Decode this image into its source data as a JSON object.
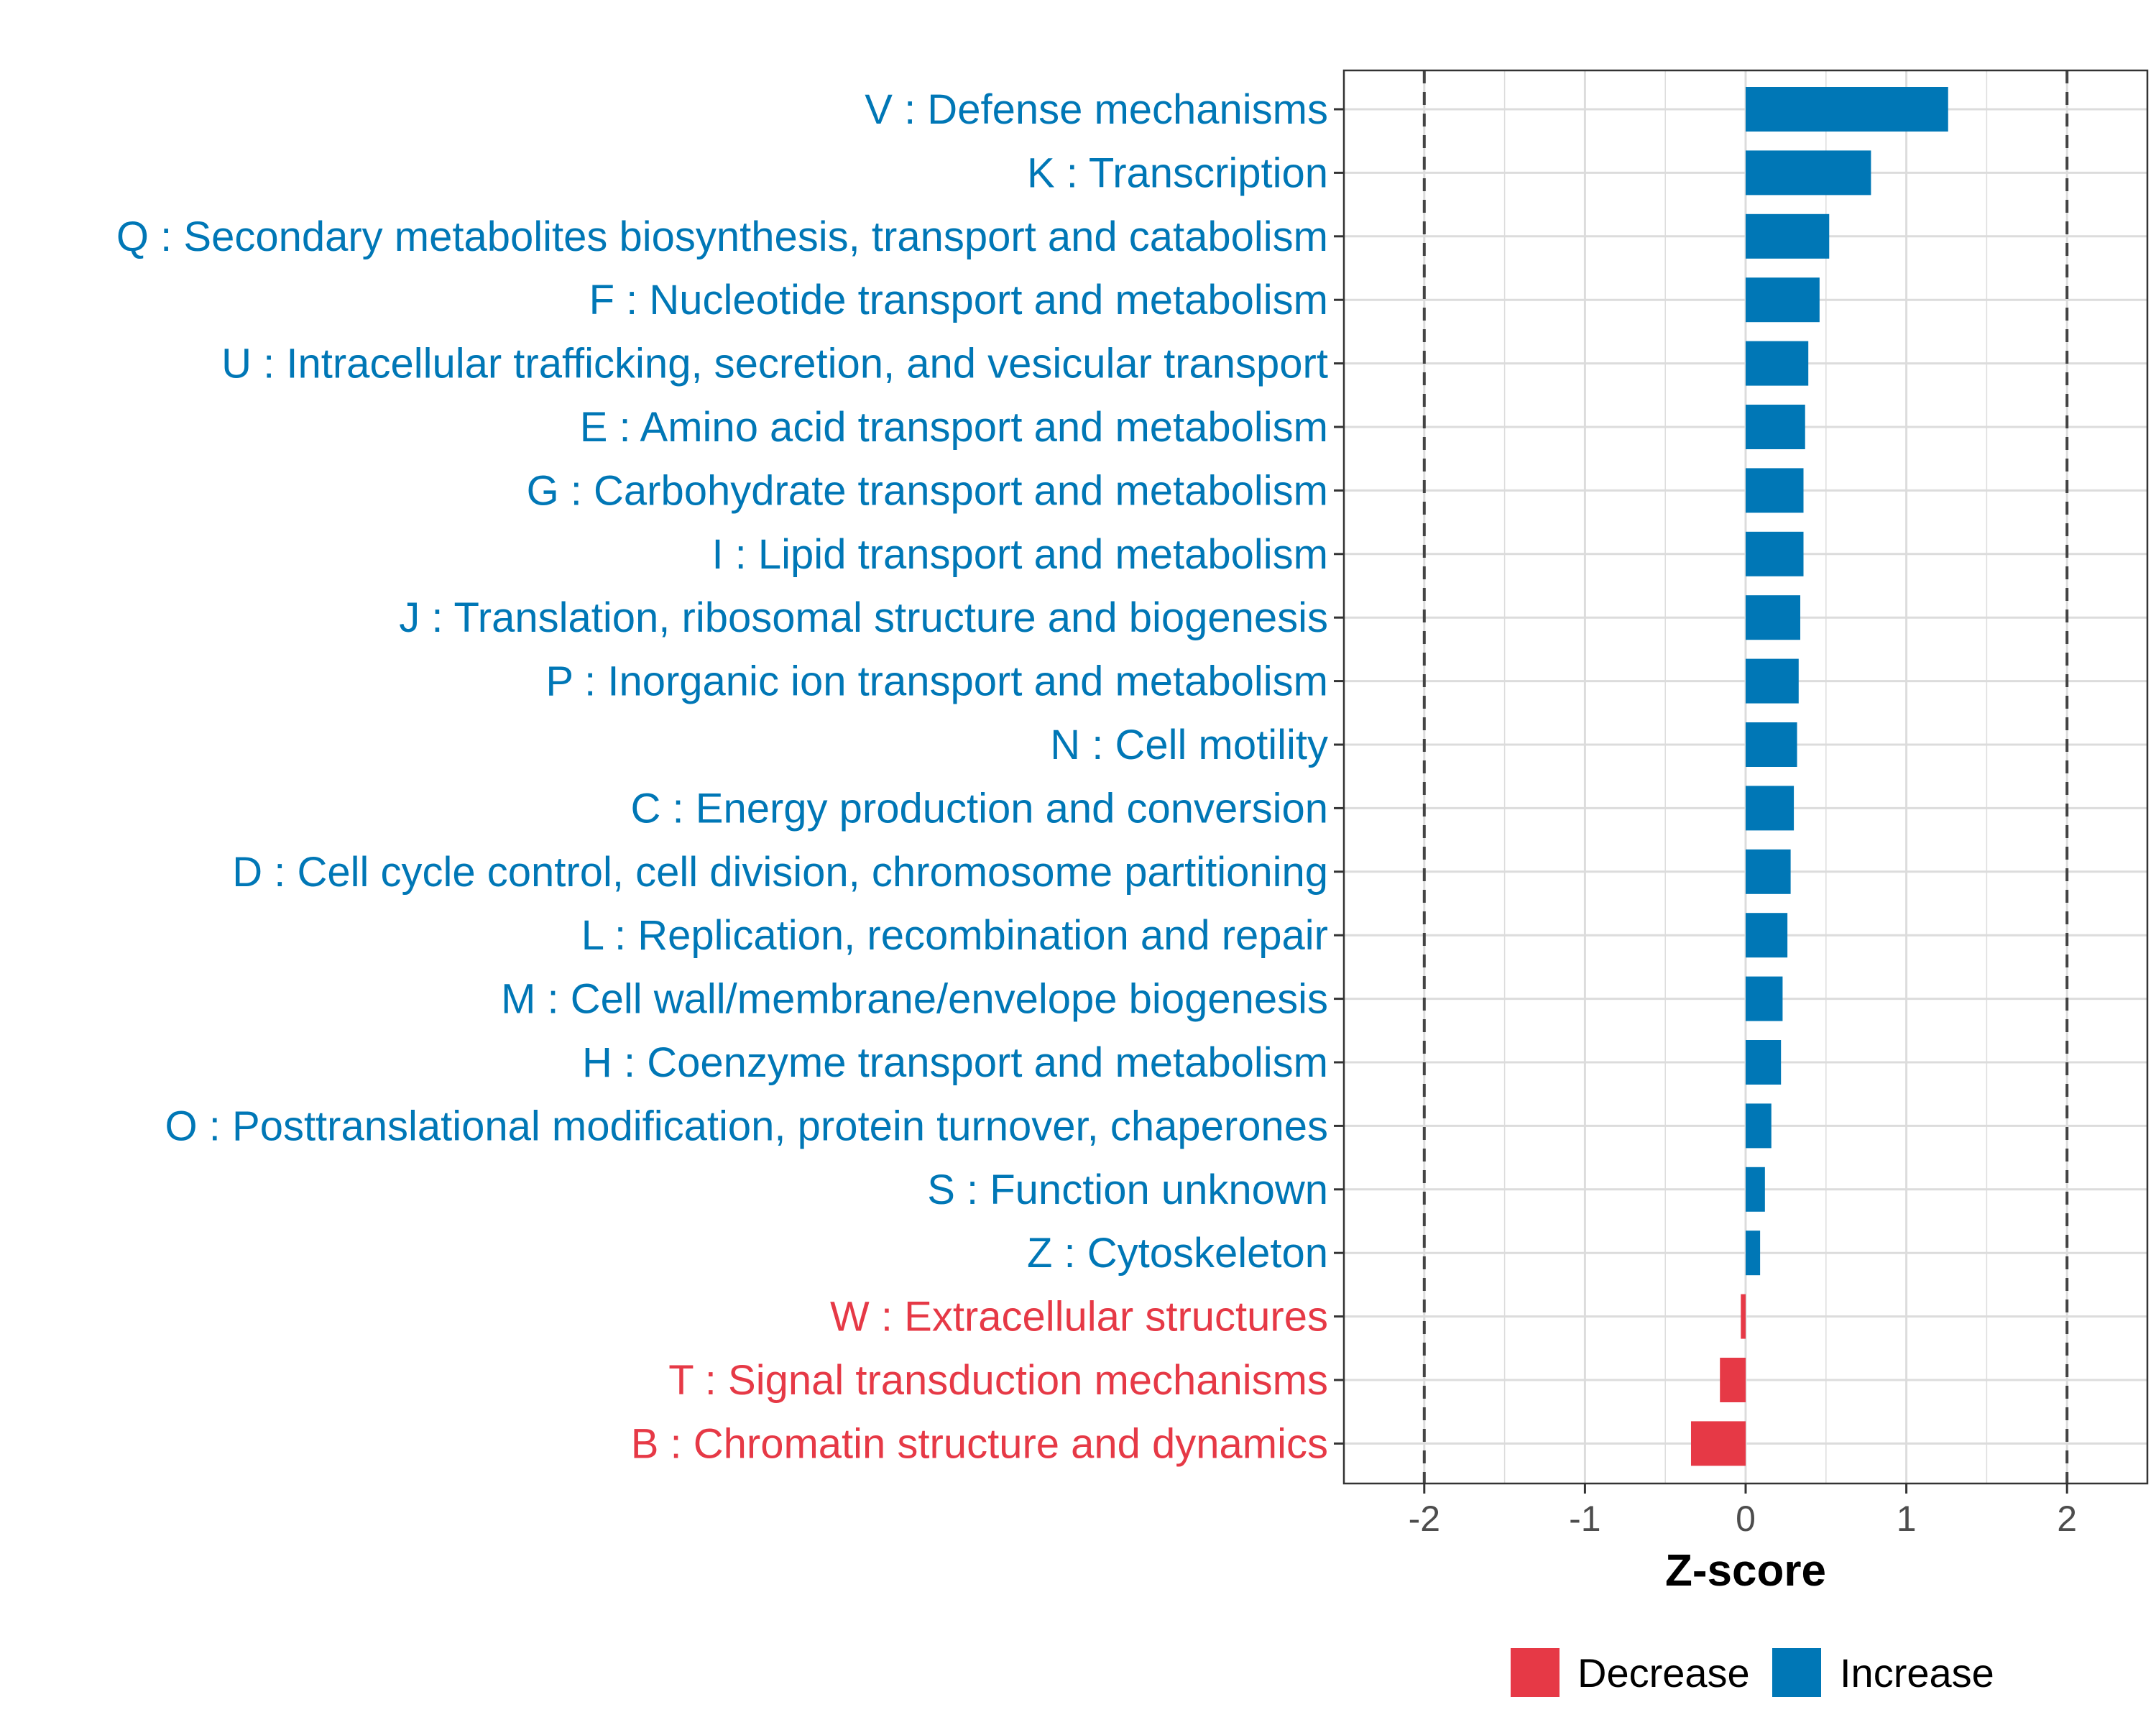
{
  "chart_data": {
    "type": "bar",
    "orientation": "horizontal",
    "categories": [
      "V : Defense mechanisms",
      "K : Transcription",
      "Q : Secondary metabolites biosynthesis, transport and catabolism",
      "F : Nucleotide transport and metabolism",
      "U : Intracellular trafficking, secretion, and vesicular transport",
      "E : Amino acid transport and metabolism",
      "G : Carbohydrate transport and metabolism",
      "I : Lipid transport and metabolism",
      "J : Translation, ribosomal structure and biogenesis",
      "P : Inorganic ion transport and metabolism",
      "N : Cell motility",
      "C : Energy production and conversion",
      "D : Cell cycle control, cell division, chromosome partitioning",
      "L : Replication, recombination and repair",
      "M : Cell wall/membrane/envelope biogenesis",
      "H : Coenzyme transport and metabolism",
      "O : Posttranslational modification, protein turnover, chaperones",
      "S : Function unknown",
      "Z : Cytoskeleton",
      "W : Extracellular structures",
      "T : Signal transduction mechanisms",
      "B : Chromatin structure and dynamics"
    ],
    "values": [
      1.26,
      0.78,
      0.52,
      0.46,
      0.39,
      0.37,
      0.36,
      0.36,
      0.34,
      0.33,
      0.32,
      0.3,
      0.28,
      0.26,
      0.23,
      0.22,
      0.16,
      0.12,
      0.09,
      -0.03,
      -0.16,
      -0.34
    ],
    "xlim": [
      -2.5,
      2.5
    ],
    "xticks": [
      -2,
      -1,
      0,
      1,
      2
    ],
    "xtick_labels": [
      "-2",
      "-1",
      "0",
      "1",
      "2"
    ],
    "reference_lines": [
      -2,
      2
    ],
    "xlabel": "Z-score",
    "ylabel": "",
    "grid": true,
    "legend": {
      "position": "bottom",
      "entries": [
        {
          "label": "Decrease",
          "color": "#e63946"
        },
        {
          "label": "Increase",
          "color": "#0077b6"
        }
      ]
    },
    "colors": {
      "increase": "#0077b6",
      "decrease": "#e63946"
    }
  }
}
